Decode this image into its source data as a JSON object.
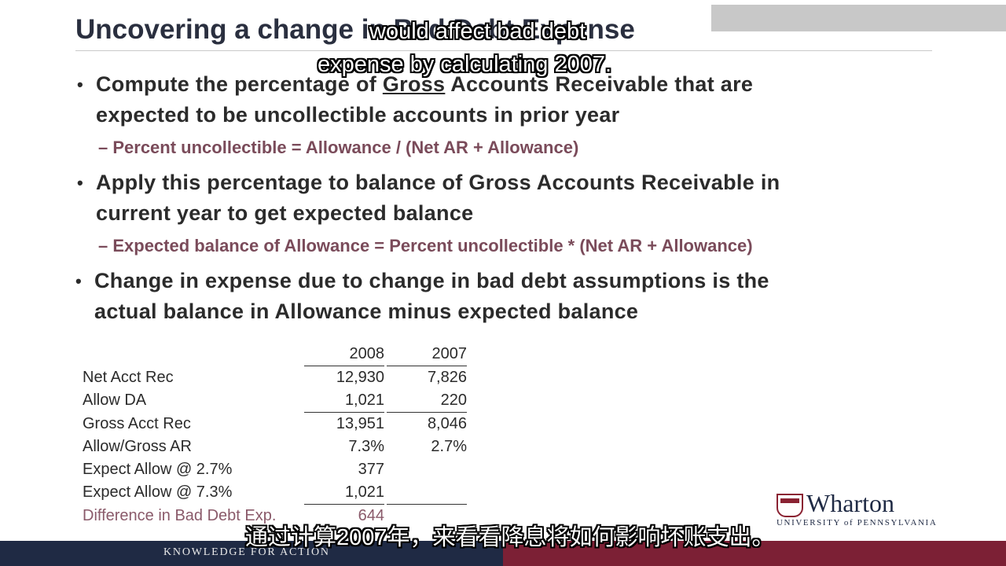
{
  "slide": {
    "title": "Uncovering a change in Bad Debt Expense",
    "bullets": [
      {
        "line1_pre": "Compute the percentage of ",
        "line1_underlined": "Gross",
        "line1_post": " Accounts Receivable that are",
        "line2": "expected to be uncollectible accounts in prior year",
        "sub": "– Percent uncollectible = Allowance / (Net AR + Allowance)"
      },
      {
        "line1": "Apply this percentage to balance of Gross Accounts Receivable in",
        "line2": "current year to get expected balance",
        "sub": "– Expected balance of Allowance = Percent uncollectible * (Net AR + Allowance)"
      },
      {
        "line1": "Change in expense due to change in bad debt assumptions is the",
        "line2": "actual balance in Allowance minus expected balance"
      }
    ]
  },
  "table": {
    "headers": [
      "2008",
      "2007"
    ],
    "rows": [
      {
        "label": "Net Acct Rec",
        "v2008": "12,930",
        "v2007": "7,826"
      },
      {
        "label": "Allow DA",
        "v2008": "1,021",
        "v2007": "220"
      },
      {
        "label": "Gross Acct Rec",
        "v2008": "13,951",
        "v2007": "8,046"
      },
      {
        "label": "Allow/Gross AR",
        "v2008": "7.3%",
        "v2007": "2.7%"
      },
      {
        "label": "Expect Allow @ 2.7%",
        "v2008": "377",
        "v2007": ""
      },
      {
        "label": "Expect Allow @ 7.3%",
        "v2008": "1,021",
        "v2007": ""
      },
      {
        "label": "Difference in Bad Debt Exp.",
        "v2008": "644",
        "v2007": ""
      }
    ]
  },
  "logo": {
    "name": "Wharton",
    "sub": "UNIVERSITY of PENNSYLVANIA"
  },
  "footer": {
    "tagline": "KNOWLEDGE FOR ACTION"
  },
  "captions": {
    "english_line1": "would affect bad debt",
    "english_line2": "expense by calculating 2007.",
    "chinese": "通过计算2007年，来看看降息将如何影响坏账支出。"
  },
  "colors": {
    "navy": "#1f2a44",
    "maroon": "#7c2035",
    "sub_text": "#7a4b5a"
  }
}
